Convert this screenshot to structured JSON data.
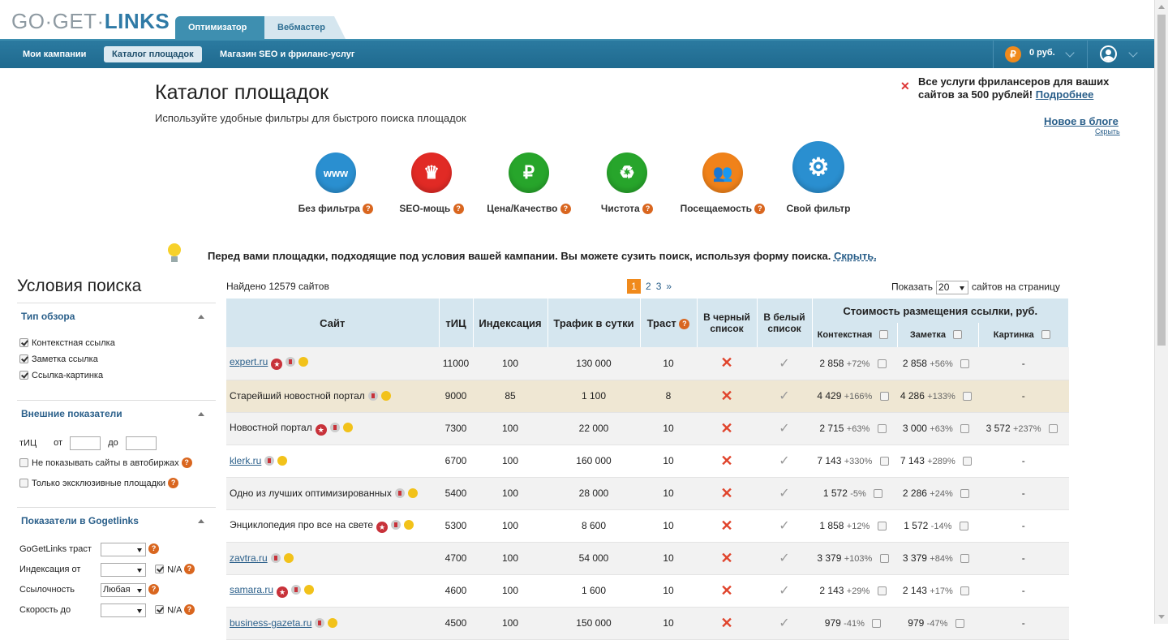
{
  "logo": {
    "go": "GO·GET·",
    "links": "LINKS"
  },
  "tabs": [
    {
      "label": "Оптимизатор"
    },
    {
      "label": "Вебмастер"
    }
  ],
  "nav": {
    "items": [
      {
        "label": "Мои кампании"
      },
      {
        "label": "Каталог площадок"
      },
      {
        "label": "Магазин SEO и фриланс-услуг"
      }
    ],
    "balance": "0 руб.",
    "rub": "₽"
  },
  "header": {
    "title": "Каталог площадок",
    "subtitle": "Используйте удобные фильтры для быстрого поиска площадок",
    "promo_text": "Все услуги фрилансеров для ваших сайтов за 500 рублей!",
    "promo_link": "Подробнее",
    "blog_link": "Новое в блоге",
    "blog_hide": "Скрыть"
  },
  "filters": [
    {
      "label": "Без фильтра",
      "color": "#2a8fd0",
      "glyph": "www"
    },
    {
      "label": "SEO-мощь",
      "color": "#e12a25",
      "glyph": "♛"
    },
    {
      "label": "Цена/Качество",
      "color": "#27a52b",
      "glyph": "₽"
    },
    {
      "label": "Чистота",
      "color": "#27a52b",
      "glyph": "♻"
    },
    {
      "label": "Посещаемость",
      "color": "#f0821a",
      "glyph": "👥"
    },
    {
      "label": "Свой фильтр",
      "color": "#2a8fd0",
      "glyph": "⚙"
    }
  ],
  "tip": {
    "text": "Перед вами площадки, подходящие под условия вашей кампании. Вы можете сузить поиск, используя форму поиска.",
    "link": "Скрыть."
  },
  "sidebar": {
    "title": "Условия поиска",
    "sections": [
      {
        "title": "Тип обзора",
        "items": [
          "Контекстная ссылка",
          "Заметка ссылка",
          "Ссылка-картинка"
        ]
      },
      {
        "title": "Внешние показатели",
        "tic": "тИЦ",
        "from": "от",
        "to": "до",
        "items": [
          "Не показывать сайты в автобиржах",
          "Только эксклюзивные площадки"
        ]
      },
      {
        "title": "Показатели в Gogetlinks",
        "rows": [
          {
            "label": "GoGetLinks траст",
            "value": ""
          },
          {
            "label": "Индексация от",
            "value": "",
            "na": "N/A"
          },
          {
            "label": "Ссылочность",
            "value": "Любая"
          },
          {
            "label": "Скорость до",
            "value": "",
            "na": "N/A"
          }
        ]
      }
    ]
  },
  "table": {
    "found": "Найдено 12579 сайтов",
    "pages": [
      "1",
      "2",
      "3",
      "»"
    ],
    "perpage_label": "Показать",
    "perpage_value": "20",
    "perpage_suffix": "сайтов на страницу",
    "headers": {
      "site": "Сайт",
      "tic": "тИЦ",
      "index": "Индексация",
      "traffic": "Трафик в сутки",
      "trust": "Траст",
      "black": "В черный список",
      "white": "В белый список",
      "cost": "Стоимость размещения ссылки, руб.",
      "context": "Контекстная",
      "note": "Заметка",
      "image": "Картинка"
    },
    "rows": [
      {
        "site": "expert.ru",
        "link": true,
        "star": true,
        "tic": "11000",
        "index": "100",
        "traffic": "130 000",
        "trust": "10",
        "ctx": "2 858",
        "ctxp": "+72%",
        "note": "2 858",
        "notep": "+56%",
        "img": "-",
        "imgp": ""
      },
      {
        "site": "Старейший новостной портал",
        "link": false,
        "star": false,
        "tic": "9000",
        "index": "85",
        "traffic": "1 100",
        "trust": "8",
        "ctx": "4 429",
        "ctxp": "+166%",
        "note": "4 286",
        "notep": "+133%",
        "img": "-",
        "imgp": ""
      },
      {
        "site": "Новостной портал",
        "link": false,
        "star": true,
        "tic": "7300",
        "index": "100",
        "traffic": "22 000",
        "trust": "10",
        "ctx": "2 715",
        "ctxp": "+63%",
        "note": "3 000",
        "notep": "+63%",
        "img": "3 572",
        "imgp": "+237%"
      },
      {
        "site": "klerk.ru",
        "link": true,
        "star": false,
        "tic": "6700",
        "index": "100",
        "traffic": "160 000",
        "trust": "10",
        "ctx": "7 143",
        "ctxp": "+330%",
        "note": "7 143",
        "notep": "+289%",
        "img": "-",
        "imgp": ""
      },
      {
        "site": "Одно из лучших оптимизированных",
        "link": false,
        "star": false,
        "tic": "5400",
        "index": "100",
        "traffic": "28 000",
        "trust": "10",
        "ctx": "1 572",
        "ctxp": "-5%",
        "note": "2 286",
        "notep": "+24%",
        "img": "-",
        "imgp": ""
      },
      {
        "site": "Энциклопедия про все на свете",
        "link": false,
        "star": true,
        "tic": "5300",
        "index": "100",
        "traffic": "8 600",
        "trust": "10",
        "ctx": "1 858",
        "ctxp": "+12%",
        "note": "1 572",
        "notep": "-14%",
        "img": "-",
        "imgp": ""
      },
      {
        "site": "zavtra.ru",
        "link": true,
        "star": false,
        "tic": "4700",
        "index": "100",
        "traffic": "54 000",
        "trust": "10",
        "ctx": "3 379",
        "ctxp": "+103%",
        "note": "3 379",
        "notep": "+84%",
        "img": "-",
        "imgp": ""
      },
      {
        "site": "samara.ru",
        "link": true,
        "star": true,
        "tic": "4600",
        "index": "100",
        "traffic": "1 600",
        "trust": "10",
        "ctx": "2 143",
        "ctxp": "+29%",
        "note": "2 143",
        "notep": "+17%",
        "img": "-",
        "imgp": ""
      },
      {
        "site": "business-gazeta.ru",
        "link": true,
        "star": false,
        "tic": "4500",
        "index": "100",
        "traffic": "150 000",
        "trust": "10",
        "ctx": "979",
        "ctxp": "-41%",
        "note": "979",
        "notep": "-47%",
        "img": "-",
        "imgp": ""
      }
    ]
  }
}
